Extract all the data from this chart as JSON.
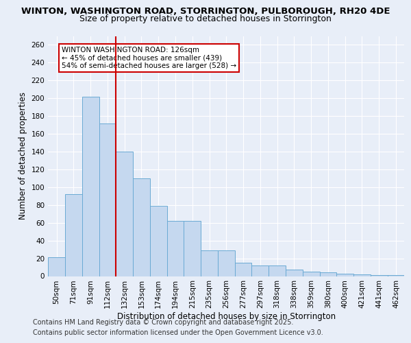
{
  "title1": "WINTON, WASHINGTON ROAD, STORRINGTON, PULBOROUGH, RH20 4DE",
  "title2": "Size of property relative to detached houses in Storrington",
  "xlabel": "Distribution of detached houses by size in Storrington",
  "ylabel": "Number of detached properties",
  "categories": [
    "50sqm",
    "71sqm",
    "91sqm",
    "112sqm",
    "132sqm",
    "153sqm",
    "174sqm",
    "194sqm",
    "215sqm",
    "235sqm",
    "256sqm",
    "277sqm",
    "297sqm",
    "318sqm",
    "338sqm",
    "359sqm",
    "380sqm",
    "400sqm",
    "421sqm",
    "441sqm",
    "462sqm"
  ],
  "values": [
    21,
    92,
    202,
    172,
    140,
    110,
    79,
    62,
    62,
    29,
    29,
    15,
    12,
    12,
    7,
    5,
    4,
    3,
    2,
    1,
    1
  ],
  "bar_color": "#c5d8ef",
  "bar_edge_color": "#6aaad4",
  "vline_x": 3.5,
  "vline_color": "#cc0000",
  "annotation_text": "WINTON WASHINGTON ROAD: 126sqm\n← 45% of detached houses are smaller (439)\n54% of semi-detached houses are larger (528) →",
  "annotation_box_color": "#ffffff",
  "annotation_box_edge": "#cc0000",
  "ylim": [
    0,
    270
  ],
  "yticks": [
    0,
    20,
    40,
    60,
    80,
    100,
    120,
    140,
    160,
    180,
    200,
    220,
    240,
    260
  ],
  "footer1": "Contains HM Land Registry data © Crown copyright and database right 2025.",
  "footer2": "Contains public sector information licensed under the Open Government Licence v3.0.",
  "bg_color": "#e8eef8",
  "plot_bg_color": "#e8eef8",
  "title1_fontsize": 9.5,
  "title2_fontsize": 9,
  "tick_fontsize": 7.5,
  "ylabel_fontsize": 8.5,
  "xlabel_fontsize": 8.5,
  "footer_fontsize": 7,
  "ann_fontsize": 7.5
}
